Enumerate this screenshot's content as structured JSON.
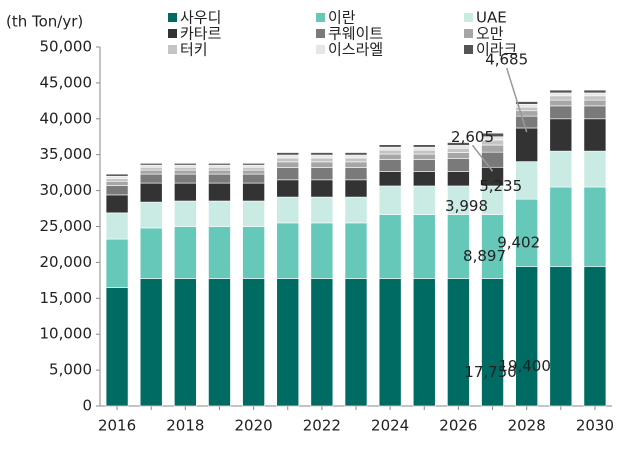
{
  "chart_data": {
    "type": "bar",
    "stacked": true,
    "y_axis_label": "(th Ton/yr)",
    "categories": [
      "2016",
      null,
      "2018",
      null,
      "2020",
      null,
      "2022",
      null,
      "2024",
      null,
      "2026",
      null,
      "2028",
      null,
      "2030"
    ],
    "ylim": [
      0,
      50000
    ],
    "yticks": [
      {
        "value": 0,
        "label": "0"
      },
      {
        "value": 5000,
        "label": "5,000"
      },
      {
        "value": 10000,
        "label": "10,000"
      },
      {
        "value": 15000,
        "label": "15,000"
      },
      {
        "value": 20000,
        "label": "20,000"
      },
      {
        "value": 25000,
        "label": "25,000"
      },
      {
        "value": 30000,
        "label": "30,000"
      },
      {
        "value": 35000,
        "label": "35,000"
      },
      {
        "value": 40000,
        "label": "40,000"
      },
      {
        "value": 45000,
        "label": "45,000"
      },
      {
        "value": 50000,
        "label": "50,000"
      }
    ],
    "series": [
      {
        "name": "사우디",
        "color": "#006b63",
        "values": [
          16500,
          17750,
          17750,
          17750,
          17750,
          17750,
          17750,
          17750,
          17750,
          17750,
          17750,
          17750,
          19400,
          19400,
          19400
        ],
        "value_labels": [
          null,
          null,
          null,
          null,
          null,
          null,
          null,
          null,
          null,
          null,
          null,
          "17,750",
          "19,400",
          null,
          null
        ]
      },
      {
        "name": "이란",
        "color": "#66c8b9",
        "values": [
          6750,
          7050,
          7250,
          7250,
          7250,
          7750,
          7750,
          7750,
          8897,
          8897,
          8897,
          8897,
          9402,
          11100,
          11100
        ],
        "value_labels": [
          null,
          null,
          null,
          null,
          null,
          null,
          null,
          null,
          null,
          null,
          null,
          "8,897",
          "9,402",
          null,
          null
        ]
      },
      {
        "name": "UAE",
        "color": "#c9ebe4",
        "values": [
          3650,
          3600,
          3550,
          3550,
          3550,
          3600,
          3600,
          3600,
          3998,
          3998,
          3998,
          3998,
          5235,
          5000,
          5000
        ],
        "value_labels": [
          null,
          null,
          null,
          null,
          null,
          null,
          null,
          null,
          null,
          null,
          null,
          "3,998",
          "5,235",
          null,
          null
        ]
      },
      {
        "name": "카타르",
        "color": "#333333",
        "values": [
          2500,
          2650,
          2500,
          2500,
          2500,
          2400,
          2400,
          2400,
          2000,
          2000,
          2000,
          2605,
          4685,
          4500,
          4500
        ],
        "value_labels": [
          null,
          null,
          null,
          null,
          null,
          null,
          null,
          null,
          null,
          null,
          null,
          "2,605",
          "4,685",
          null,
          null
        ]
      },
      {
        "name": "쿠웨이트",
        "color": "#7a7a7a",
        "values": [
          1300,
          1250,
          1250,
          1250,
          1250,
          1700,
          1700,
          1700,
          1700,
          1700,
          1800,
          2100,
          1650,
          1800,
          1800
        ]
      },
      {
        "name": "오만",
        "color": "#a6a6a6",
        "values": [
          600,
          550,
          550,
          550,
          550,
          800,
          800,
          800,
          750,
          750,
          850,
          1000,
          750,
          800,
          800
        ]
      },
      {
        "name": "터키",
        "color": "#c4c4c4",
        "values": [
          400,
          400,
          400,
          400,
          400,
          550,
          550,
          550,
          550,
          550,
          600,
          700,
          500,
          600,
          600
        ]
      },
      {
        "name": "이스라엘",
        "color": "#e6e6e6",
        "values": [
          300,
          300,
          300,
          300,
          300,
          400,
          400,
          400,
          400,
          400,
          400,
          450,
          400,
          400,
          400
        ]
      },
      {
        "name": "이라크",
        "color": "#555555",
        "values": [
          300,
          250,
          250,
          250,
          250,
          350,
          350,
          350,
          350,
          350,
          400,
          500,
          380,
          400,
          400
        ]
      }
    ]
  }
}
